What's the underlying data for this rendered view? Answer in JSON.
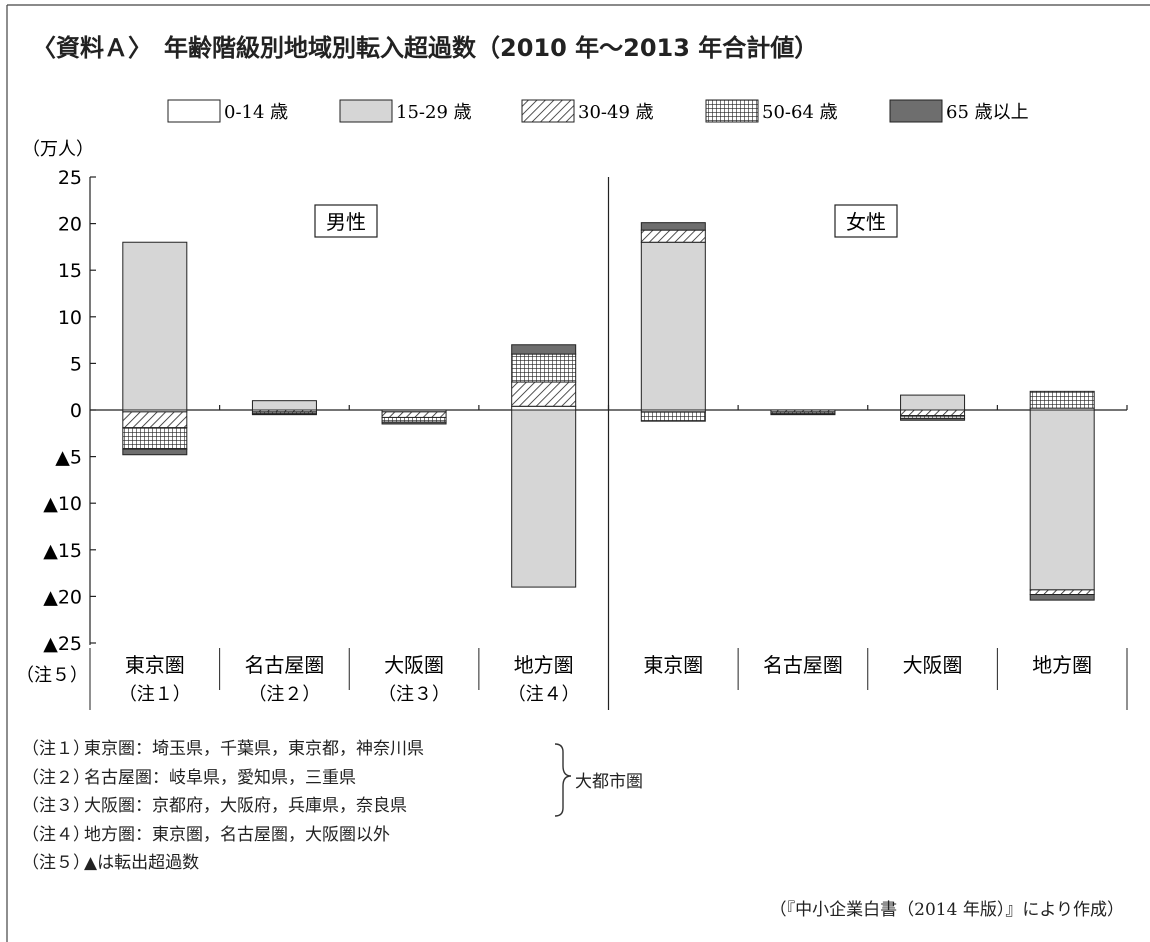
{
  "title": "〈資料Ａ〉　年齢階級別地域別転入超過数（2010 年〜2013 年合計値）",
  "unit_label": "（万人）",
  "note5_axis_label": "（注５）",
  "panels": {
    "male": "男性",
    "female": "女性"
  },
  "notes": [
    {
      "key": "（注１）",
      "text": "東京圏：埼玉県，千葉県，東京都，神奈川県"
    },
    {
      "key": "（注２）",
      "text": "名古屋圏：岐阜県，愛知県，三重県"
    },
    {
      "key": "（注３）",
      "text": "大阪圏：京都府，大阪府，兵庫県，奈良県"
    },
    {
      "key": "（注４）",
      "text": "地方圏：東京圏，名古屋圏，大阪圏以外"
    },
    {
      "key": "（注５）",
      "text": "▲は転出超過数"
    }
  ],
  "brace_label": "大都市圏",
  "source": "（『中小企業白書（2014 年版）』により作成）",
  "chart_data": {
    "type": "bar",
    "stacked": true,
    "ylim": [
      -25,
      25
    ],
    "yticks": [
      {
        "value": 25,
        "label": "25"
      },
      {
        "value": 20,
        "label": "20"
      },
      {
        "value": 15,
        "label": "15"
      },
      {
        "value": 10,
        "label": "10"
      },
      {
        "value": 5,
        "label": "5"
      },
      {
        "value": 0,
        "label": "0"
      },
      {
        "value": -5,
        "label": "▲5"
      },
      {
        "value": -10,
        "label": "▲10"
      },
      {
        "value": -15,
        "label": "▲15"
      },
      {
        "value": -20,
        "label": "▲20"
      },
      {
        "value": -25,
        "label": "▲25"
      }
    ],
    "legend_position": "top",
    "categories": [
      {
        "label": "東京圏",
        "note": "（注１）",
        "panel": "男性"
      },
      {
        "label": "名古屋圏",
        "note": "（注２）",
        "panel": "男性"
      },
      {
        "label": "大阪圏",
        "note": "（注３）",
        "panel": "男性"
      },
      {
        "label": "地方圏",
        "note": "（注４）",
        "panel": "男性"
      },
      {
        "label": "東京圏",
        "note": "",
        "panel": "女性"
      },
      {
        "label": "名古屋圏",
        "note": "",
        "panel": "女性"
      },
      {
        "label": "大阪圏",
        "note": "",
        "panel": "女性"
      },
      {
        "label": "地方圏",
        "note": "",
        "panel": "女性"
      }
    ],
    "series": [
      {
        "name": "0-14 歳",
        "pattern": "white",
        "values": [
          -0.2,
          0.0,
          0.0,
          0.4,
          -0.2,
          0.0,
          0.0,
          0.2
        ]
      },
      {
        "name": "15-29 歳",
        "pattern": "gray",
        "values": [
          18.0,
          1.0,
          -0.2,
          -19.0,
          18.0,
          0.0,
          1.6,
          -19.3
        ]
      },
      {
        "name": "30-49 歳",
        "pattern": "hatch",
        "values": [
          -1.7,
          -0.2,
          -0.6,
          2.6,
          1.3,
          -0.2,
          -0.6,
          -0.5
        ]
      },
      {
        "name": "50-64 歳",
        "pattern": "grid",
        "values": [
          -2.3,
          -0.2,
          -0.5,
          3.0,
          -1.0,
          -0.2,
          -0.3,
          1.8
        ]
      },
      {
        "name": "65 歳以上",
        "pattern": "dark",
        "values": [
          -0.6,
          -0.1,
          -0.2,
          1.0,
          0.8,
          -0.1,
          -0.2,
          -0.6
        ]
      }
    ]
  }
}
